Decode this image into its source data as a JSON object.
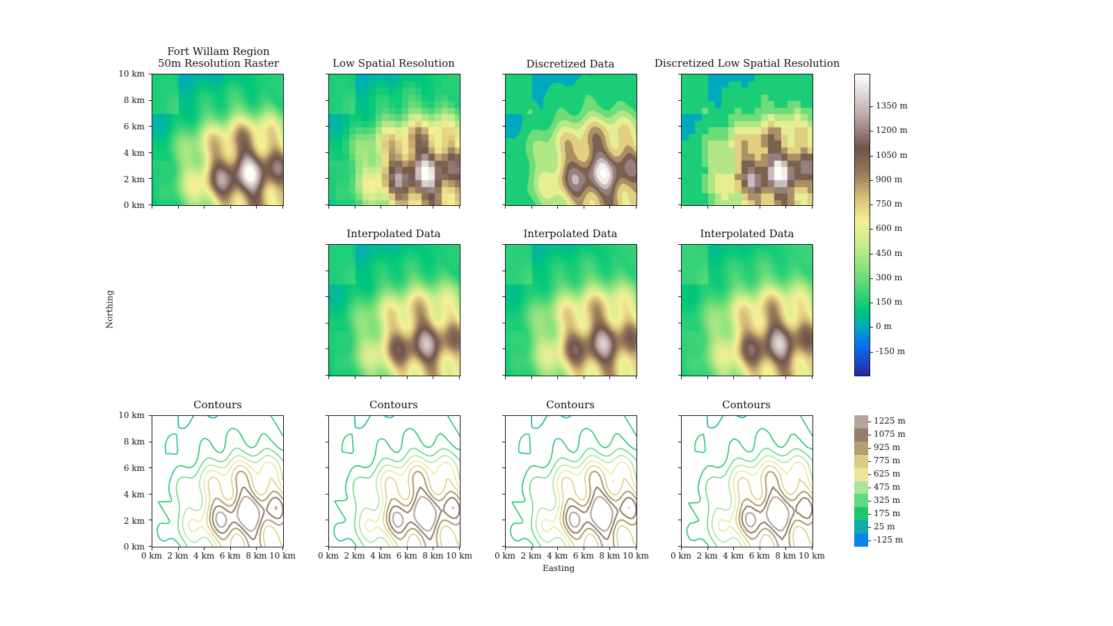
{
  "figure": {
    "ylabel": "Northing",
    "xlabel": "Easting"
  },
  "panels": {
    "r0c0": {
      "title": "Fort Willam Region\n50m Resolution Raster"
    },
    "r0c1": {
      "title": "Low Spatial Resolution"
    },
    "r0c2": {
      "title": "Discretized Data"
    },
    "r0c3": {
      "title": "Discretized Low Spatial Resolution"
    },
    "r1c1": {
      "title": "Interpolated Data"
    },
    "r1c2": {
      "title": "Interpolated Data"
    },
    "r1c3": {
      "title": "Interpolated Data"
    },
    "r2c0": {
      "title": "Contours"
    },
    "r2c1": {
      "title": "Contours"
    },
    "r2c2": {
      "title": "Contours"
    },
    "r2c3": {
      "title": "Contours"
    }
  },
  "axes": {
    "y_ticks": [
      "10 km",
      "8 km",
      "6 km",
      "4 km",
      "2 km",
      "0 km"
    ],
    "x_ticks": [
      "0 km",
      "2 km",
      "4 km",
      "6 km",
      "8 km",
      "10 km"
    ]
  },
  "colorbars": {
    "elevation": {
      "ticks": [
        "1350 m",
        "1200 m",
        "1050 m",
        "900 m",
        "750 m",
        "600 m",
        "450 m",
        "300 m",
        "150 m",
        "0 m",
        "-150 m"
      ],
      "range": [
        -300,
        1550
      ],
      "colormap": "terrain"
    },
    "contours": {
      "ticks": [
        "1225 m",
        "1075 m",
        "925 m",
        "775 m",
        "625 m",
        "475 m",
        "325 m",
        "175 m",
        "25 m",
        "-125 m"
      ],
      "colors": [
        "#b3a49f",
        "#957e6a",
        "#b0a070",
        "#d9cc84",
        "#e9e897",
        "#a8e49a",
        "#64d880",
        "#1ec46e",
        "#11aaaa",
        "#0a84ea"
      ]
    }
  },
  "chart_data": [
    {
      "type": "heatmap",
      "title": "Fort Willam Region\n50m Resolution Raster",
      "xlabel": "",
      "ylabel": "",
      "xlim": [
        0,
        10
      ],
      "ylim": [
        0,
        10
      ],
      "x_unit": "km",
      "y_unit": "km"
    },
    {
      "type": "heatmap",
      "title": "Low Spatial Resolution",
      "xlim": [
        0,
        10
      ],
      "ylim": [
        0,
        10
      ]
    },
    {
      "type": "heatmap",
      "title": "Discretized Data",
      "xlim": [
        0,
        10
      ],
      "ylim": [
        0,
        10
      ]
    },
    {
      "type": "heatmap",
      "title": "Discretized Low Spatial Resolution",
      "xlim": [
        0,
        10
      ],
      "ylim": [
        0,
        10
      ]
    },
    {
      "type": "heatmap",
      "title": "Interpolated Data",
      "xlim": [
        0,
        10
      ],
      "ylim": [
        0,
        10
      ]
    },
    {
      "type": "heatmap",
      "title": "Interpolated Data",
      "xlim": [
        0,
        10
      ],
      "ylim": [
        0,
        10
      ]
    },
    {
      "type": "heatmap",
      "title": "Interpolated Data",
      "xlim": [
        0,
        10
      ],
      "ylim": [
        0,
        10
      ]
    },
    {
      "type": "line",
      "title": "Contours",
      "xlim": [
        0,
        10
      ],
      "ylim": [
        0,
        10
      ],
      "levels": [
        -125,
        25,
        175,
        325,
        475,
        625,
        775,
        925,
        1075,
        1225
      ]
    },
    {
      "type": "line",
      "title": "Contours",
      "xlim": [
        0,
        10
      ],
      "ylim": [
        0,
        10
      ],
      "levels": [
        -125,
        25,
        175,
        325,
        475,
        625,
        775,
        925,
        1075,
        1225
      ]
    },
    {
      "type": "line",
      "title": "Contours",
      "xlim": [
        0,
        10
      ],
      "ylim": [
        0,
        10
      ],
      "levels": [
        -125,
        25,
        175,
        325,
        475,
        625,
        775,
        925,
        1075,
        1225
      ]
    },
    {
      "type": "line",
      "title": "Contours",
      "xlim": [
        0,
        10
      ],
      "ylim": [
        0,
        10
      ],
      "levels": [
        -125,
        25,
        175,
        325,
        475,
        625,
        775,
        925,
        1075,
        1225
      ]
    }
  ]
}
